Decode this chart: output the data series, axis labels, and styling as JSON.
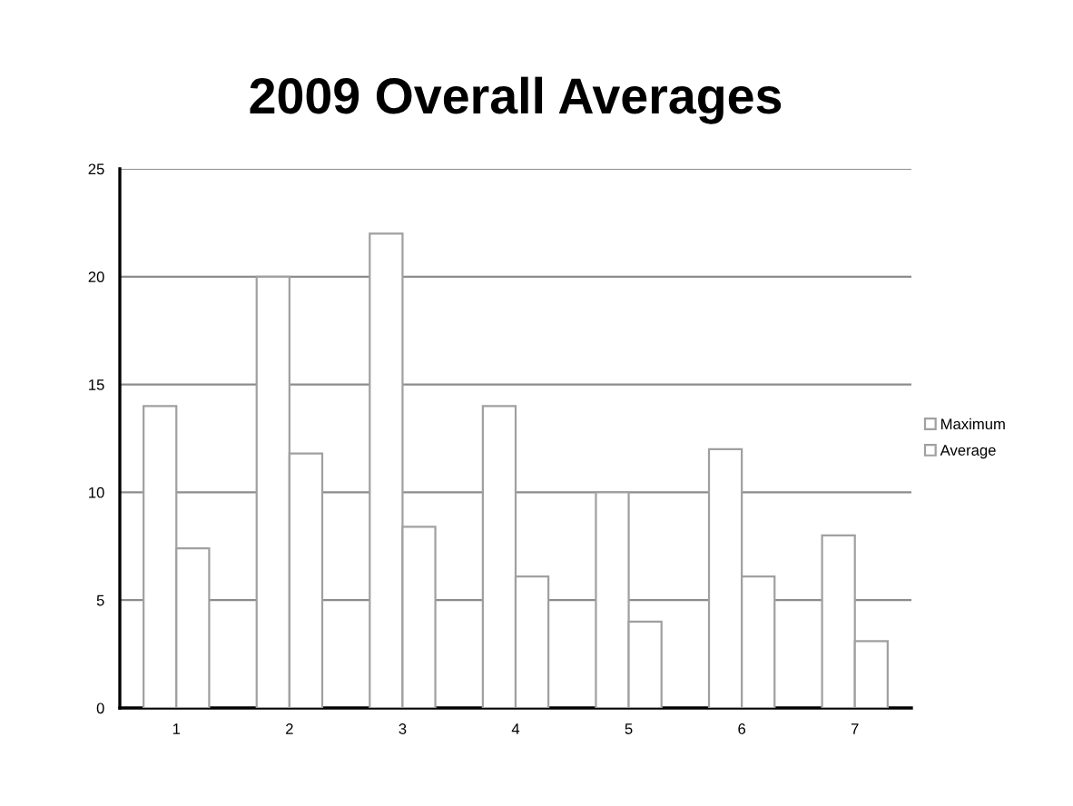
{
  "chart_data": {
    "type": "bar",
    "title": "2009 Overall Averages",
    "categories": [
      "1",
      "2",
      "3",
      "4",
      "5",
      "6",
      "7"
    ],
    "series": [
      {
        "name": "Maximum",
        "color": "#ffffff",
        "values": [
          14,
          20,
          22,
          14,
          10,
          12,
          8
        ]
      },
      {
        "name": "Average",
        "color": "#ffffff",
        "values": [
          7.4,
          11.8,
          8.4,
          6.1,
          4.0,
          6.1,
          3.1
        ]
      }
    ],
    "ylim": [
      0,
      25
    ],
    "yticks": [
      0,
      5,
      10,
      15,
      20,
      25
    ],
    "grid": "y",
    "legend": "right"
  }
}
